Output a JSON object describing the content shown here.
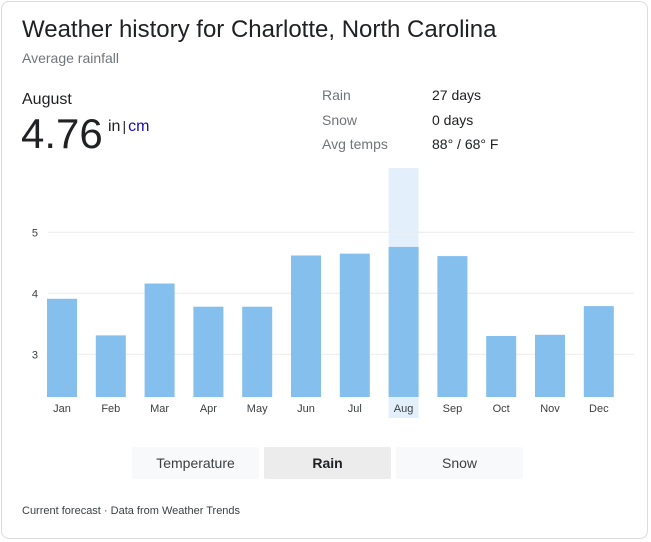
{
  "header": {
    "title": "Weather history for Charlotte, North Carolina",
    "subtitle": "Average rainfall"
  },
  "summary": {
    "month": "August",
    "value": "4.76",
    "unit_primary": "in",
    "unit_separator": "|",
    "unit_alt": "cm"
  },
  "stats": [
    {
      "label": "Rain",
      "value": "27 days"
    },
    {
      "label": "Snow",
      "value": "0 days"
    },
    {
      "label": "Avg temps",
      "value": "88° / 68° F"
    }
  ],
  "chart_data": {
    "type": "bar",
    "categories": [
      "Jan",
      "Feb",
      "Mar",
      "Apr",
      "May",
      "Jun",
      "Jul",
      "Aug",
      "Sep",
      "Oct",
      "Nov",
      "Dec"
    ],
    "values": [
      3.91,
      3.31,
      4.16,
      3.78,
      3.78,
      4.62,
      4.65,
      4.76,
      4.61,
      3.3,
      3.32,
      3.79
    ],
    "selected_index": 7,
    "yticks": [
      3,
      4,
      5
    ],
    "ylim": [
      2.3,
      5.8
    ],
    "grid": true,
    "colors": {
      "bar": "#85bfee",
      "selected_band": "#e3f0fc",
      "grid": "#ebebeb",
      "tick": "#3c4043"
    }
  },
  "tabs": [
    {
      "label": "Temperature",
      "active": false
    },
    {
      "label": "Rain",
      "active": true
    },
    {
      "label": "Snow",
      "active": false
    }
  ],
  "footer": {
    "text": "Current forecast · Data from Weather Trends"
  }
}
